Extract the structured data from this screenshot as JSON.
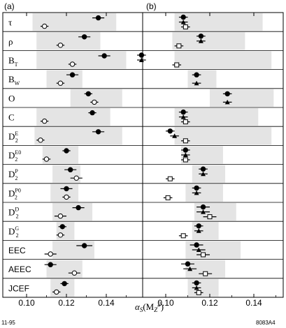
{
  "chart_data": [
    {
      "type": "scatter",
      "panel_label": "(a)",
      "x_tick_labels": [
        "0.10",
        "0.12",
        "0.14"
      ],
      "xlim": [
        0.095,
        0.152
      ],
      "rows": [
        {
          "label": "τ",
          "band": [
            0.103,
            0.145
          ],
          "points": [
            {
              "marker": "filled-circle",
              "value": 0.136,
              "err": 0.003
            },
            {
              "marker": "open-circle",
              "value": 0.109,
              "err": 0.002
            }
          ]
        },
        {
          "label": "ρ",
          "band": [
            0.105,
            0.137
          ],
          "points": [
            {
              "marker": "filled-circle",
              "value": 0.129,
              "err": 0.003
            },
            {
              "marker": "open-circle",
              "value": 0.117,
              "err": 0.002
            }
          ]
        },
        {
          "label": "B_T",
          "band": [
            0.105,
            0.15
          ],
          "points": [
            {
              "marker": "filled-circle",
              "value": 0.139,
              "err": 0.003
            },
            {
              "marker": "open-circle",
              "value": 0.123,
              "err": 0.002
            }
          ]
        },
        {
          "label": "B_W",
          "band": [
            0.11,
            0.128
          ],
          "points": [
            {
              "marker": "filled-circle",
              "value": 0.123,
              "err": 0.003
            },
            {
              "marker": "open-circle",
              "value": 0.117,
              "err": 0.002
            }
          ]
        },
        {
          "label": "O",
          "band": [
            0.122,
            0.148
          ],
          "points": [
            {
              "marker": "filled-circle",
              "value": 0.131,
              "err": 0.002
            },
            {
              "marker": "open-circle",
              "value": 0.134,
              "err": 0.002
            }
          ]
        },
        {
          "label": "C",
          "band": [
            0.105,
            0.142
          ],
          "points": [
            {
              "marker": "filled-circle",
              "value": 0.133,
              "err": 0.002
            },
            {
              "marker": "open-circle",
              "value": 0.109,
              "err": 0.002
            }
          ]
        },
        {
          "label": "D2E",
          "band": [
            0.104,
            0.148
          ],
          "points": [
            {
              "marker": "filled-circle",
              "value": 0.136,
              "err": 0.003
            },
            {
              "marker": "open-circle",
              "value": 0.107,
              "err": 0.002
            }
          ]
        },
        {
          "label": "D2E0",
          "band": [
            0.108,
            0.126
          ],
          "points": [
            {
              "marker": "filled-circle",
              "value": 0.12,
              "err": 0.002
            },
            {
              "marker": "open-circle",
              "value": 0.11,
              "err": 0.002
            }
          ]
        },
        {
          "label": "D2P",
          "band": [
            0.113,
            0.127
          ],
          "points": [
            {
              "marker": "filled-circle",
              "value": 0.122,
              "err": 0.003
            },
            {
              "marker": "open-circle",
              "value": 0.125,
              "err": 0.003
            }
          ]
        },
        {
          "label": "D2P0",
          "band": [
            0.112,
            0.126
          ],
          "points": [
            {
              "marker": "filled-circle",
              "value": 0.12,
              "err": 0.003
            },
            {
              "marker": "open-circle",
              "value": 0.12,
              "err": 0.002
            }
          ]
        },
        {
          "label": "D2D",
          "band": [
            0.113,
            0.133
          ],
          "points": [
            {
              "marker": "filled-circle",
              "value": 0.126,
              "err": 0.003
            },
            {
              "marker": "open-circle",
              "value": 0.117,
              "err": 0.003
            }
          ]
        },
        {
          "label": "D2G",
          "band": [
            0.115,
            0.124
          ],
          "points": [
            {
              "marker": "filled-circle",
              "value": 0.118,
              "err": 0.002
            },
            {
              "marker": "open-circle",
              "value": 0.117,
              "err": 0.002
            }
          ]
        },
        {
          "label": "EEC",
          "band": [
            0.113,
            0.134
          ],
          "points": [
            {
              "marker": "filled-circle",
              "value": 0.129,
              "err": 0.004
            },
            {
              "marker": "open-circle",
              "value": 0.112,
              "err": 0.003
            }
          ]
        },
        {
          "label": "AEEC",
          "band": [
            0.11,
            0.128
          ],
          "points": [
            {
              "marker": "filled-circle",
              "value": 0.112,
              "err": 0.003
            },
            {
              "marker": "open-circle",
              "value": 0.124,
              "err": 0.003
            }
          ]
        },
        {
          "label": "JCEF",
          "band": [
            0.112,
            0.124
          ],
          "points": [
            {
              "marker": "filled-circle",
              "value": 0.119,
              "err": 0.002
            },
            {
              "marker": "open-circle",
              "value": 0.115,
              "err": 0.002
            }
          ]
        }
      ]
    },
    {
      "type": "scatter",
      "panel_label": "(b)",
      "x_tick_labels": [
        "0.10",
        "0.12",
        "0.14"
      ],
      "xlim": [
        0.088,
        0.152
      ],
      "rows": [
        {
          "label": "τ",
          "band": [
            0.104,
            0.144
          ],
          "points": [
            {
              "marker": "filled-circle",
              "value": 0.108,
              "err": 0.002
            },
            {
              "marker": "filled-triangle",
              "value": 0.108,
              "err": 0.002
            },
            {
              "marker": "open-square",
              "value": 0.109,
              "err": 0.002
            }
          ]
        },
        {
          "label": "ρ",
          "band": [
            0.103,
            0.136
          ],
          "points": [
            {
              "marker": "filled-circle",
              "value": 0.116,
              "err": 0.002
            },
            {
              "marker": "filled-triangle",
              "value": 0.116,
              "err": 0.002
            },
            {
              "marker": "open-square",
              "value": 0.106,
              "err": 0.002
            }
          ]
        },
        {
          "label": "B_T",
          "band": [
            0.104,
            0.148
          ],
          "points": [
            {
              "marker": "filled-circle",
              "value": 0.089,
              "err": 0.002
            },
            {
              "marker": "filled-triangle",
              "value": 0.089,
              "err": 0.002
            },
            {
              "marker": "open-square",
              "value": 0.105,
              "err": 0.002
            }
          ]
        },
        {
          "label": "B_W",
          "band": [
            0.11,
            0.123
          ],
          "points": [
            {
              "marker": "filled-circle",
              "value": 0.114,
              "err": 0.002
            },
            {
              "marker": "filled-triangle",
              "value": 0.114,
              "err": 0.002
            }
          ]
        },
        {
          "label": "O",
          "band": [
            0.12,
            0.149
          ],
          "points": [
            {
              "marker": "filled-circle",
              "value": 0.128,
              "err": 0.002
            },
            {
              "marker": "filled-triangle",
              "value": 0.128,
              "err": 0.002
            }
          ]
        },
        {
          "label": "C",
          "band": [
            0.104,
            0.142
          ],
          "points": [
            {
              "marker": "filled-circle",
              "value": 0.108,
              "err": 0.002
            },
            {
              "marker": "filled-triangle",
              "value": 0.108,
              "err": 0.002
            },
            {
              "marker": "open-square",
              "value": 0.109,
              "err": 0.002
            }
          ]
        },
        {
          "label": "D2E",
          "band": [
            0.104,
            0.148
          ],
          "points": [
            {
              "marker": "filled-circle",
              "value": 0.102,
              "err": 0.002
            },
            {
              "marker": "filled-triangle",
              "value": 0.104,
              "err": 0.002
            },
            {
              "marker": "open-square",
              "value": 0.109,
              "err": 0.002
            }
          ]
        },
        {
          "label": "D2E0",
          "band": [
            0.107,
            0.126
          ],
          "points": [
            {
              "marker": "filled-circle",
              "value": 0.109,
              "err": 0.002
            },
            {
              "marker": "filled-triangle",
              "value": 0.109,
              "err": 0.002
            },
            {
              "marker": "open-square",
              "value": 0.109,
              "err": 0.002
            }
          ]
        },
        {
          "label": "D2P",
          "band": [
            0.112,
            0.127
          ],
          "points": [
            {
              "marker": "filled-circle",
              "value": 0.117,
              "err": 0.002
            },
            {
              "marker": "filled-triangle",
              "value": 0.117,
              "err": 0.002
            },
            {
              "marker": "open-square",
              "value": 0.102,
              "err": 0.002
            }
          ]
        },
        {
          "label": "D2P0",
          "band": [
            0.109,
            0.126
          ],
          "points": [
            {
              "marker": "filled-circle",
              "value": 0.114,
              "err": 0.002
            },
            {
              "marker": "filled-triangle",
              "value": 0.114,
              "err": 0.002
            },
            {
              "marker": "open-square",
              "value": 0.101,
              "err": 0.002
            }
          ]
        },
        {
          "label": "D2D",
          "band": [
            0.113,
            0.132
          ],
          "points": [
            {
              "marker": "filled-circle",
              "value": 0.117,
              "err": 0.003
            },
            {
              "marker": "filled-triangle",
              "value": 0.117,
              "err": 0.003
            },
            {
              "marker": "open-square",
              "value": 0.12,
              "err": 0.003
            }
          ]
        },
        {
          "label": "D2G",
          "band": [
            0.112,
            0.124
          ],
          "points": [
            {
              "marker": "filled-circle",
              "value": 0.115,
              "err": 0.002
            },
            {
              "marker": "filled-triangle",
              "value": 0.115,
              "err": 0.002
            },
            {
              "marker": "open-square",
              "value": 0.108,
              "err": 0.002
            }
          ]
        },
        {
          "label": "EEC",
          "band": [
            0.109,
            0.134
          ],
          "points": [
            {
              "marker": "filled-circle",
              "value": 0.114,
              "err": 0.003
            },
            {
              "marker": "filled-triangle",
              "value": 0.115,
              "err": 0.003
            },
            {
              "marker": "open-square",
              "value": 0.117,
              "err": 0.003
            }
          ]
        },
        {
          "label": "AEEC",
          "band": [
            0.109,
            0.127
          ],
          "points": [
            {
              "marker": "filled-circle",
              "value": 0.11,
              "err": 0.003
            },
            {
              "marker": "filled-triangle",
              "value": 0.111,
              "err": 0.003
            },
            {
              "marker": "open-square",
              "value": 0.118,
              "err": 0.003
            }
          ]
        },
        {
          "label": "JCEF",
          "band": [
            0.11,
            0.124
          ],
          "points": [
            {
              "marker": "filled-circle",
              "value": 0.114,
              "err": 0.002
            },
            {
              "marker": "filled-triangle",
              "value": 0.114,
              "err": 0.002
            },
            {
              "marker": "open-square",
              "value": 0.115,
              "err": 0.002
            }
          ]
        }
      ]
    }
  ],
  "xlabel": "αs(MZ²)",
  "footer_left": "11-95",
  "footer_right": "8083A4",
  "colors": {
    "band": "#e4e4e4",
    "ink": "#000000",
    "open_fill": "#ffffff"
  }
}
